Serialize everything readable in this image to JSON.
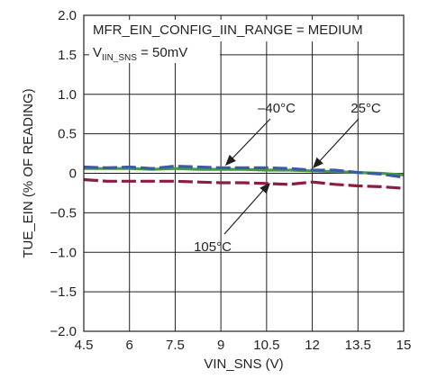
{
  "chart_data": {
    "type": "line",
    "title": "",
    "xlabel": "VIN_SNS (V)",
    "ylabel": "TUE_EIN (% OF READING)",
    "xlim": [
      4.5,
      15
    ],
    "ylim": [
      -2.0,
      2.0
    ],
    "x_ticks": [
      "4.5",
      "6",
      "7.5",
      "9",
      "10.5",
      "12",
      "13.5",
      "15"
    ],
    "y_ticks": [
      "2.0",
      "1.5",
      "1.0",
      "0.5",
      "0",
      "-0.5",
      "-1.0",
      "-1.5",
      "-2.0"
    ],
    "grid": true,
    "annotations": {
      "config_main": "MFR_EIN_CONFIG_IIN_RANGE = MEDIUM",
      "vsns_prefix": "V",
      "vsns_sub": "IIN_SNS",
      "vsns_suffix": " = 50mV"
    },
    "series": [
      {
        "name": "–40°C",
        "color": "#3a5ba6",
        "dash": "dashed",
        "x": [
          4.5,
          5.25,
          6,
          6.75,
          7.5,
          8.25,
          9,
          9.75,
          10.5,
          11.25,
          12,
          12.75,
          13.5,
          14.25,
          15
        ],
        "y": [
          0.08,
          0.07,
          0.08,
          0.06,
          0.09,
          0.08,
          0.07,
          0.07,
          0.07,
          0.06,
          0.04,
          0.04,
          0.01,
          -0.01,
          -0.05
        ]
      },
      {
        "name": "25°C",
        "color": "#4a9a3f",
        "dash": "solid",
        "x": [
          4.5,
          5.25,
          6,
          6.75,
          7.5,
          8.25,
          9,
          9.75,
          10.5,
          11.25,
          12,
          12.75,
          13.5,
          14.25,
          15
        ],
        "y": [
          0.06,
          0.06,
          0.06,
          0.05,
          0.06,
          0.05,
          0.05,
          0.05,
          0.04,
          0.04,
          0.03,
          0.02,
          0.01,
          0.0,
          -0.02
        ]
      },
      {
        "name": "105°C",
        "color": "#8c1d3f",
        "dash": "dashed",
        "x": [
          4.5,
          5.25,
          6,
          6.75,
          7.5,
          8.25,
          9,
          9.75,
          10.5,
          11.25,
          12,
          12.75,
          13.5,
          14.25,
          15
        ],
        "y": [
          -0.08,
          -0.1,
          -0.1,
          -0.1,
          -0.1,
          -0.11,
          -0.12,
          -0.12,
          -0.13,
          -0.14,
          -0.11,
          -0.14,
          -0.16,
          -0.17,
          -0.19
        ]
      }
    ]
  }
}
